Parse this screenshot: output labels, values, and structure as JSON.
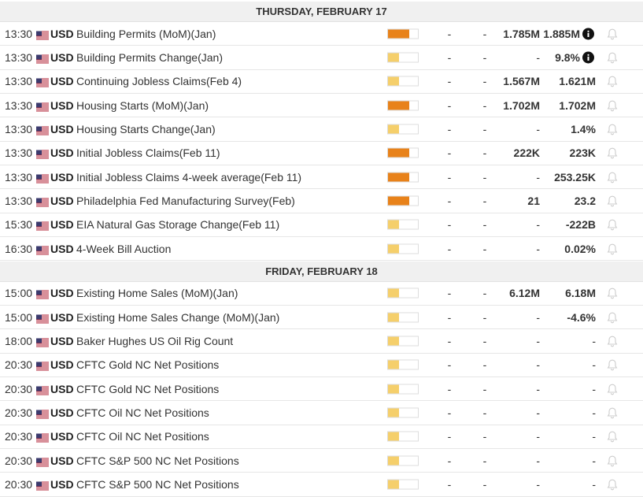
{
  "days": [
    {
      "title": "THURSDAY, FEBRUARY 17",
      "events": [
        {
          "time": "13:30",
          "currency": "USD",
          "event": "Building Permits (MoM)(Jan)",
          "impact": "high",
          "actual": "-",
          "deviation": "-",
          "consensus": "1.785M",
          "previous": "1.885M",
          "info": true
        },
        {
          "time": "13:30",
          "currency": "USD",
          "event": "Building Permits Change(Jan)",
          "impact": "low",
          "actual": "-",
          "deviation": "-",
          "consensus": "-",
          "previous": "9.8%",
          "info": true
        },
        {
          "time": "13:30",
          "currency": "USD",
          "event": "Continuing Jobless Claims(Feb 4)",
          "impact": "low",
          "actual": "-",
          "deviation": "-",
          "consensus": "1.567M",
          "previous": "1.621M"
        },
        {
          "time": "13:30",
          "currency": "USD",
          "event": "Housing Starts (MoM)(Jan)",
          "impact": "high",
          "actual": "-",
          "deviation": "-",
          "consensus": "1.702M",
          "previous": "1.702M"
        },
        {
          "time": "13:30",
          "currency": "USD",
          "event": "Housing Starts Change(Jan)",
          "impact": "low",
          "actual": "-",
          "deviation": "-",
          "consensus": "-",
          "previous": "1.4%"
        },
        {
          "time": "13:30",
          "currency": "USD",
          "event": "Initial Jobless Claims(Feb 11)",
          "impact": "high",
          "actual": "-",
          "deviation": "-",
          "consensus": "222K",
          "previous": "223K"
        },
        {
          "time": "13:30",
          "currency": "USD",
          "event": "Initial Jobless Claims 4-week average(Feb 11)",
          "impact": "high",
          "actual": "-",
          "deviation": "-",
          "consensus": "-",
          "previous": "253.25K"
        },
        {
          "time": "13:30",
          "currency": "USD",
          "event": "Philadelphia Fed Manufacturing Survey(Feb)",
          "impact": "high",
          "actual": "-",
          "deviation": "-",
          "consensus": "21",
          "previous": "23.2"
        },
        {
          "time": "15:30",
          "currency": "USD",
          "event": "EIA Natural Gas Storage Change(Feb 11)",
          "impact": "low",
          "actual": "-",
          "deviation": "-",
          "consensus": "-",
          "previous": "-222B"
        },
        {
          "time": "16:30",
          "currency": "USD",
          "event": "4-Week Bill Auction",
          "impact": "low",
          "actual": "-",
          "deviation": "-",
          "consensus": "-",
          "previous": "0.02%"
        }
      ]
    },
    {
      "title": "FRIDAY, FEBRUARY 18",
      "events": [
        {
          "time": "15:00",
          "currency": "USD",
          "event": "Existing Home Sales (MoM)(Jan)",
          "impact": "low",
          "actual": "-",
          "deviation": "-",
          "consensus": "6.12M",
          "previous": "6.18M"
        },
        {
          "time": "15:00",
          "currency": "USD",
          "event": "Existing Home Sales Change (MoM)(Jan)",
          "impact": "low",
          "actual": "-",
          "deviation": "-",
          "consensus": "-",
          "previous": "-4.6%"
        },
        {
          "time": "18:00",
          "currency": "USD",
          "event": "Baker Hughes US Oil Rig Count",
          "impact": "low",
          "actual": "-",
          "deviation": "-",
          "consensus": "-",
          "previous": "-"
        },
        {
          "time": "20:30",
          "currency": "USD",
          "event": "CFTC Gold NC Net Positions",
          "impact": "low",
          "actual": "-",
          "deviation": "-",
          "consensus": "-",
          "previous": "-"
        },
        {
          "time": "20:30",
          "currency": "USD",
          "event": "CFTC Gold NC Net Positions",
          "impact": "low",
          "actual": "-",
          "deviation": "-",
          "consensus": "-",
          "previous": "-"
        },
        {
          "time": "20:30",
          "currency": "USD",
          "event": "CFTC Oil NC Net Positions",
          "impact": "low",
          "actual": "-",
          "deviation": "-",
          "consensus": "-",
          "previous": "-"
        },
        {
          "time": "20:30",
          "currency": "USD",
          "event": "CFTC Oil NC Net Positions",
          "impact": "low",
          "actual": "-",
          "deviation": "-",
          "consensus": "-",
          "previous": "-"
        },
        {
          "time": "20:30",
          "currency": "USD",
          "event": "CFTC S&P 500 NC Net Positions",
          "impact": "low",
          "actual": "-",
          "deviation": "-",
          "consensus": "-",
          "previous": "-"
        },
        {
          "time": "20:30",
          "currency": "USD",
          "event": "CFTC S&P 500 NC Net Positions",
          "impact": "low",
          "actual": "-",
          "deviation": "-",
          "consensus": "-",
          "previous": "-"
        }
      ]
    }
  ]
}
